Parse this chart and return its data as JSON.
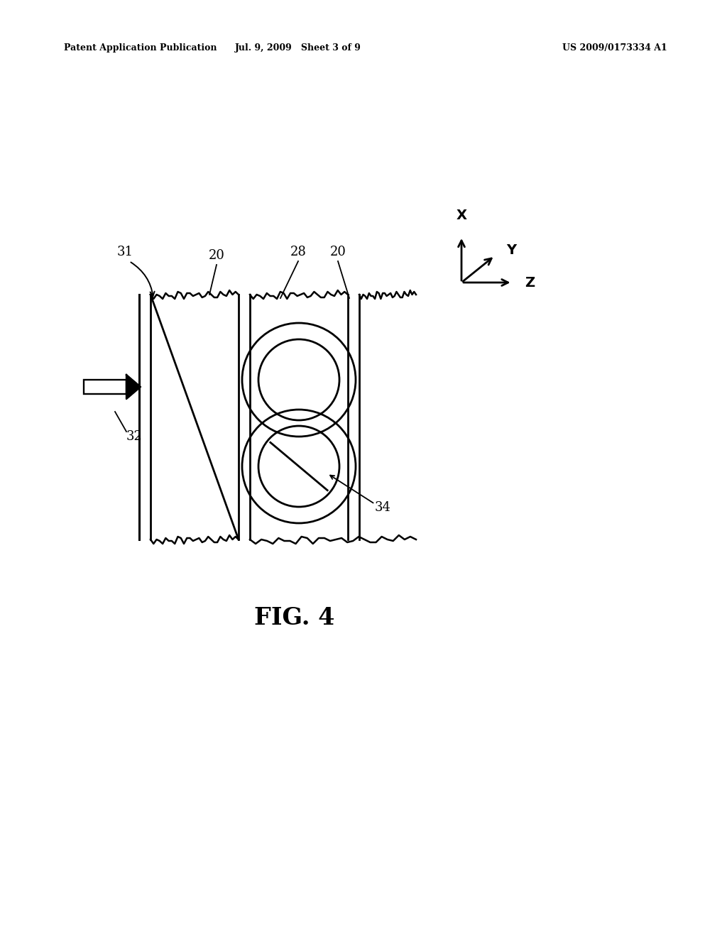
{
  "bg_color": "#ffffff",
  "header_left": "Patent Application Publication",
  "header_mid": "Jul. 9, 2009   Sheet 3 of 9",
  "header_right": "US 2009/0173334 A1",
  "fig_label": "FIG. 4"
}
